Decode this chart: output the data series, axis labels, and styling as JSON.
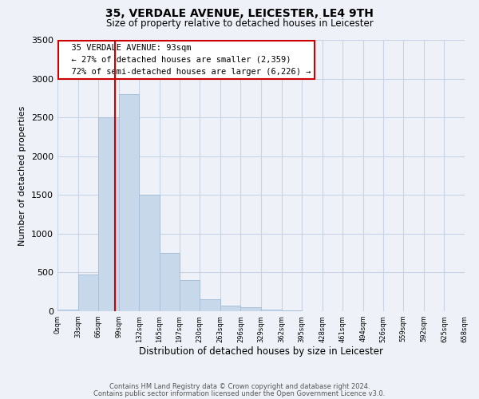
{
  "title": "35, VERDALE AVENUE, LEICESTER, LE4 9TH",
  "subtitle": "Size of property relative to detached houses in Leicester",
  "xlabel": "Distribution of detached houses by size in Leicester",
  "ylabel": "Number of detached properties",
  "annotation_title": "35 VERDALE AVENUE: 93sqm",
  "annotation_line1": "← 27% of detached houses are smaller (2,359)",
  "annotation_line2": "72% of semi-detached houses are larger (6,226) →",
  "property_size_sqm": 93,
  "bar_color": "#c8d8eb",
  "bar_edge_color": "#a8c0d8",
  "vline_color": "#cc0000",
  "vline_x": 93,
  "annotation_box_color": "#ffffff",
  "annotation_box_edge": "#cc0000",
  "grid_color": "#c8d4e4",
  "footnote1": "Contains HM Land Registry data © Crown copyright and database right 2024.",
  "footnote2": "Contains public sector information licensed under the Open Government Licence v3.0.",
  "bin_edges": [
    0,
    33,
    66,
    99,
    132,
    165,
    197,
    230,
    263,
    296,
    329,
    362,
    395,
    428,
    461,
    494,
    526,
    559,
    592,
    625,
    658
  ],
  "bin_counts": [
    20,
    470,
    2500,
    2800,
    1500,
    750,
    400,
    150,
    75,
    50,
    20,
    8,
    3,
    1,
    0,
    0,
    0,
    0,
    0,
    0
  ],
  "ylim": [
    0,
    3500
  ],
  "yticks": [
    0,
    500,
    1000,
    1500,
    2000,
    2500,
    3000,
    3500
  ],
  "background_color": "#eef2f8",
  "fig_width": 6.0,
  "fig_height": 5.0
}
